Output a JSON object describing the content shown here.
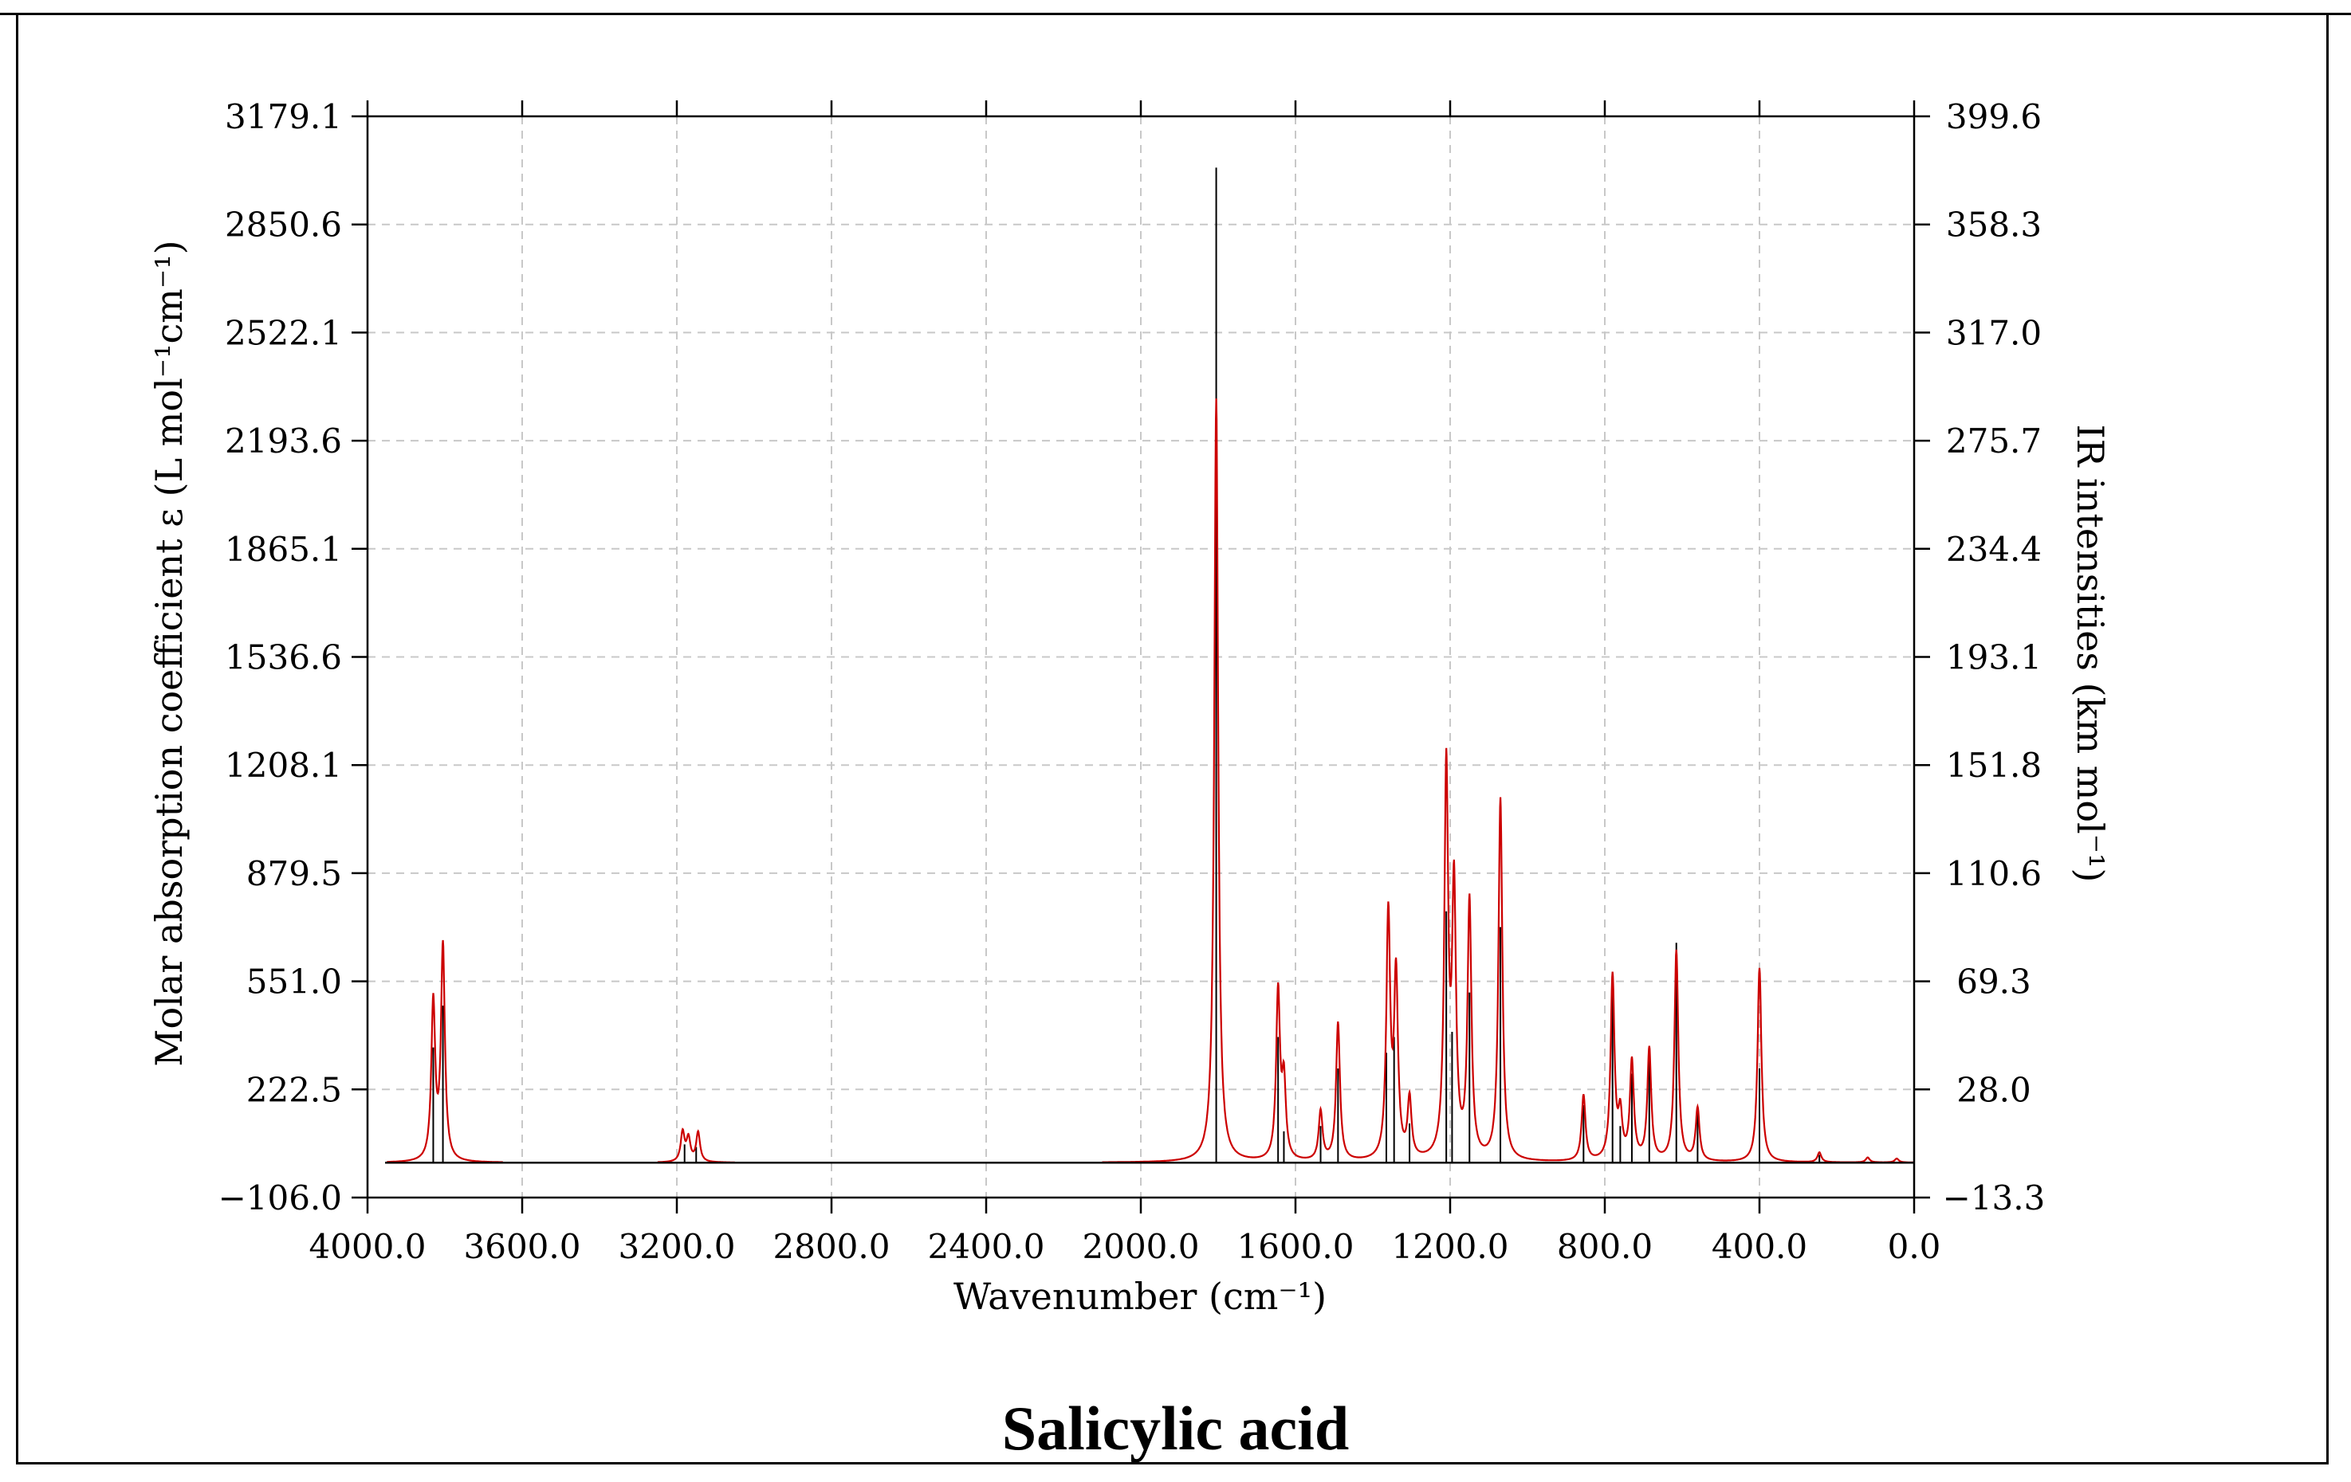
{
  "caption": "Salicylic acid",
  "chart_data": {
    "type": "line",
    "xlabel": "Wavenumber (cm⁻¹)",
    "ylabel_left": "Molar absorption coefficient  ε (L mol⁻¹cm⁻¹)",
    "ylabel_right": "IR intensities (km mol⁻¹)",
    "xlim": [
      4000.0,
      0.0
    ],
    "ylim_left": [
      -106.0,
      3179.1
    ],
    "ylim_right": [
      -13.3,
      399.6
    ],
    "x_ticks": [
      "4000.0",
      "3600.0",
      "3200.0",
      "2800.0",
      "2400.0",
      "2000.0",
      "1600.0",
      "1200.0",
      "800.0",
      "400.0",
      "0.0"
    ],
    "y_ticks_left": [
      "-106.0",
      "222.5",
      "551.0",
      "879.5",
      "1208.1",
      "1536.6",
      "1865.1",
      "2193.6",
      "2522.1",
      "2850.6",
      "3179.1"
    ],
    "y_ticks_right": [
      "-13.3",
      "28.0",
      "69.3",
      "110.6",
      "151.8",
      "193.1",
      "234.4",
      "275.7",
      "317.0",
      "358.3",
      "399.6"
    ],
    "grid": true,
    "colors": {
      "spectrum": "#cc0000",
      "sticks": "#000000",
      "grid": "#c8c8c8"
    },
    "series": [
      {
        "type": "spectrum",
        "baseline_range": [
          [
            3950,
            3650
          ],
          [
            3250,
            3050
          ],
          [
            2100,
            0
          ]
        ],
        "peaks": [
          {
            "x": 3830,
            "y": 480
          },
          {
            "x": 3805,
            "y": 650
          },
          {
            "x": 3185,
            "y": 90
          },
          {
            "x": 3170,
            "y": 70
          },
          {
            "x": 3145,
            "y": 90
          },
          {
            "x": 1805,
            "y": 2320
          },
          {
            "x": 1645,
            "y": 510
          },
          {
            "x": 1630,
            "y": 230
          },
          {
            "x": 1535,
            "y": 150
          },
          {
            "x": 1490,
            "y": 420
          },
          {
            "x": 1360,
            "y": 740
          },
          {
            "x": 1340,
            "y": 550
          },
          {
            "x": 1305,
            "y": 180
          },
          {
            "x": 1210,
            "y": 1180
          },
          {
            "x": 1190,
            "y": 800
          },
          {
            "x": 1150,
            "y": 780
          },
          {
            "x": 1070,
            "y": 1100
          },
          {
            "x": 855,
            "y": 200
          },
          {
            "x": 780,
            "y": 560
          },
          {
            "x": 760,
            "y": 130
          },
          {
            "x": 730,
            "y": 300
          },
          {
            "x": 685,
            "y": 340
          },
          {
            "x": 615,
            "y": 640
          },
          {
            "x": 560,
            "y": 160
          },
          {
            "x": 400,
            "y": 590
          },
          {
            "x": 245,
            "y": 30
          },
          {
            "x": 120,
            "y": 15
          },
          {
            "x": 45,
            "y": 12
          }
        ]
      },
      {
        "type": "sticks",
        "unit": "km mol⁻¹",
        "lines": [
          {
            "x": 3830,
            "y": 44
          },
          {
            "x": 3805,
            "y": 60
          },
          {
            "x": 3180,
            "y": 7
          },
          {
            "x": 3150,
            "y": 6
          },
          {
            "x": 1805,
            "y": 380
          },
          {
            "x": 1645,
            "y": 48
          },
          {
            "x": 1630,
            "y": 12
          },
          {
            "x": 1535,
            "y": 14
          },
          {
            "x": 1490,
            "y": 36
          },
          {
            "x": 1365,
            "y": 42
          },
          {
            "x": 1345,
            "y": 48
          },
          {
            "x": 1305,
            "y": 15
          },
          {
            "x": 1210,
            "y": 96
          },
          {
            "x": 1195,
            "y": 50
          },
          {
            "x": 1150,
            "y": 65
          },
          {
            "x": 1070,
            "y": 90
          },
          {
            "x": 855,
            "y": 22
          },
          {
            "x": 780,
            "y": 72
          },
          {
            "x": 760,
            "y": 14
          },
          {
            "x": 730,
            "y": 34
          },
          {
            "x": 685,
            "y": 40
          },
          {
            "x": 615,
            "y": 84
          },
          {
            "x": 560,
            "y": 20
          },
          {
            "x": 400,
            "y": 36
          },
          {
            "x": 245,
            "y": 3
          }
        ]
      }
    ]
  }
}
